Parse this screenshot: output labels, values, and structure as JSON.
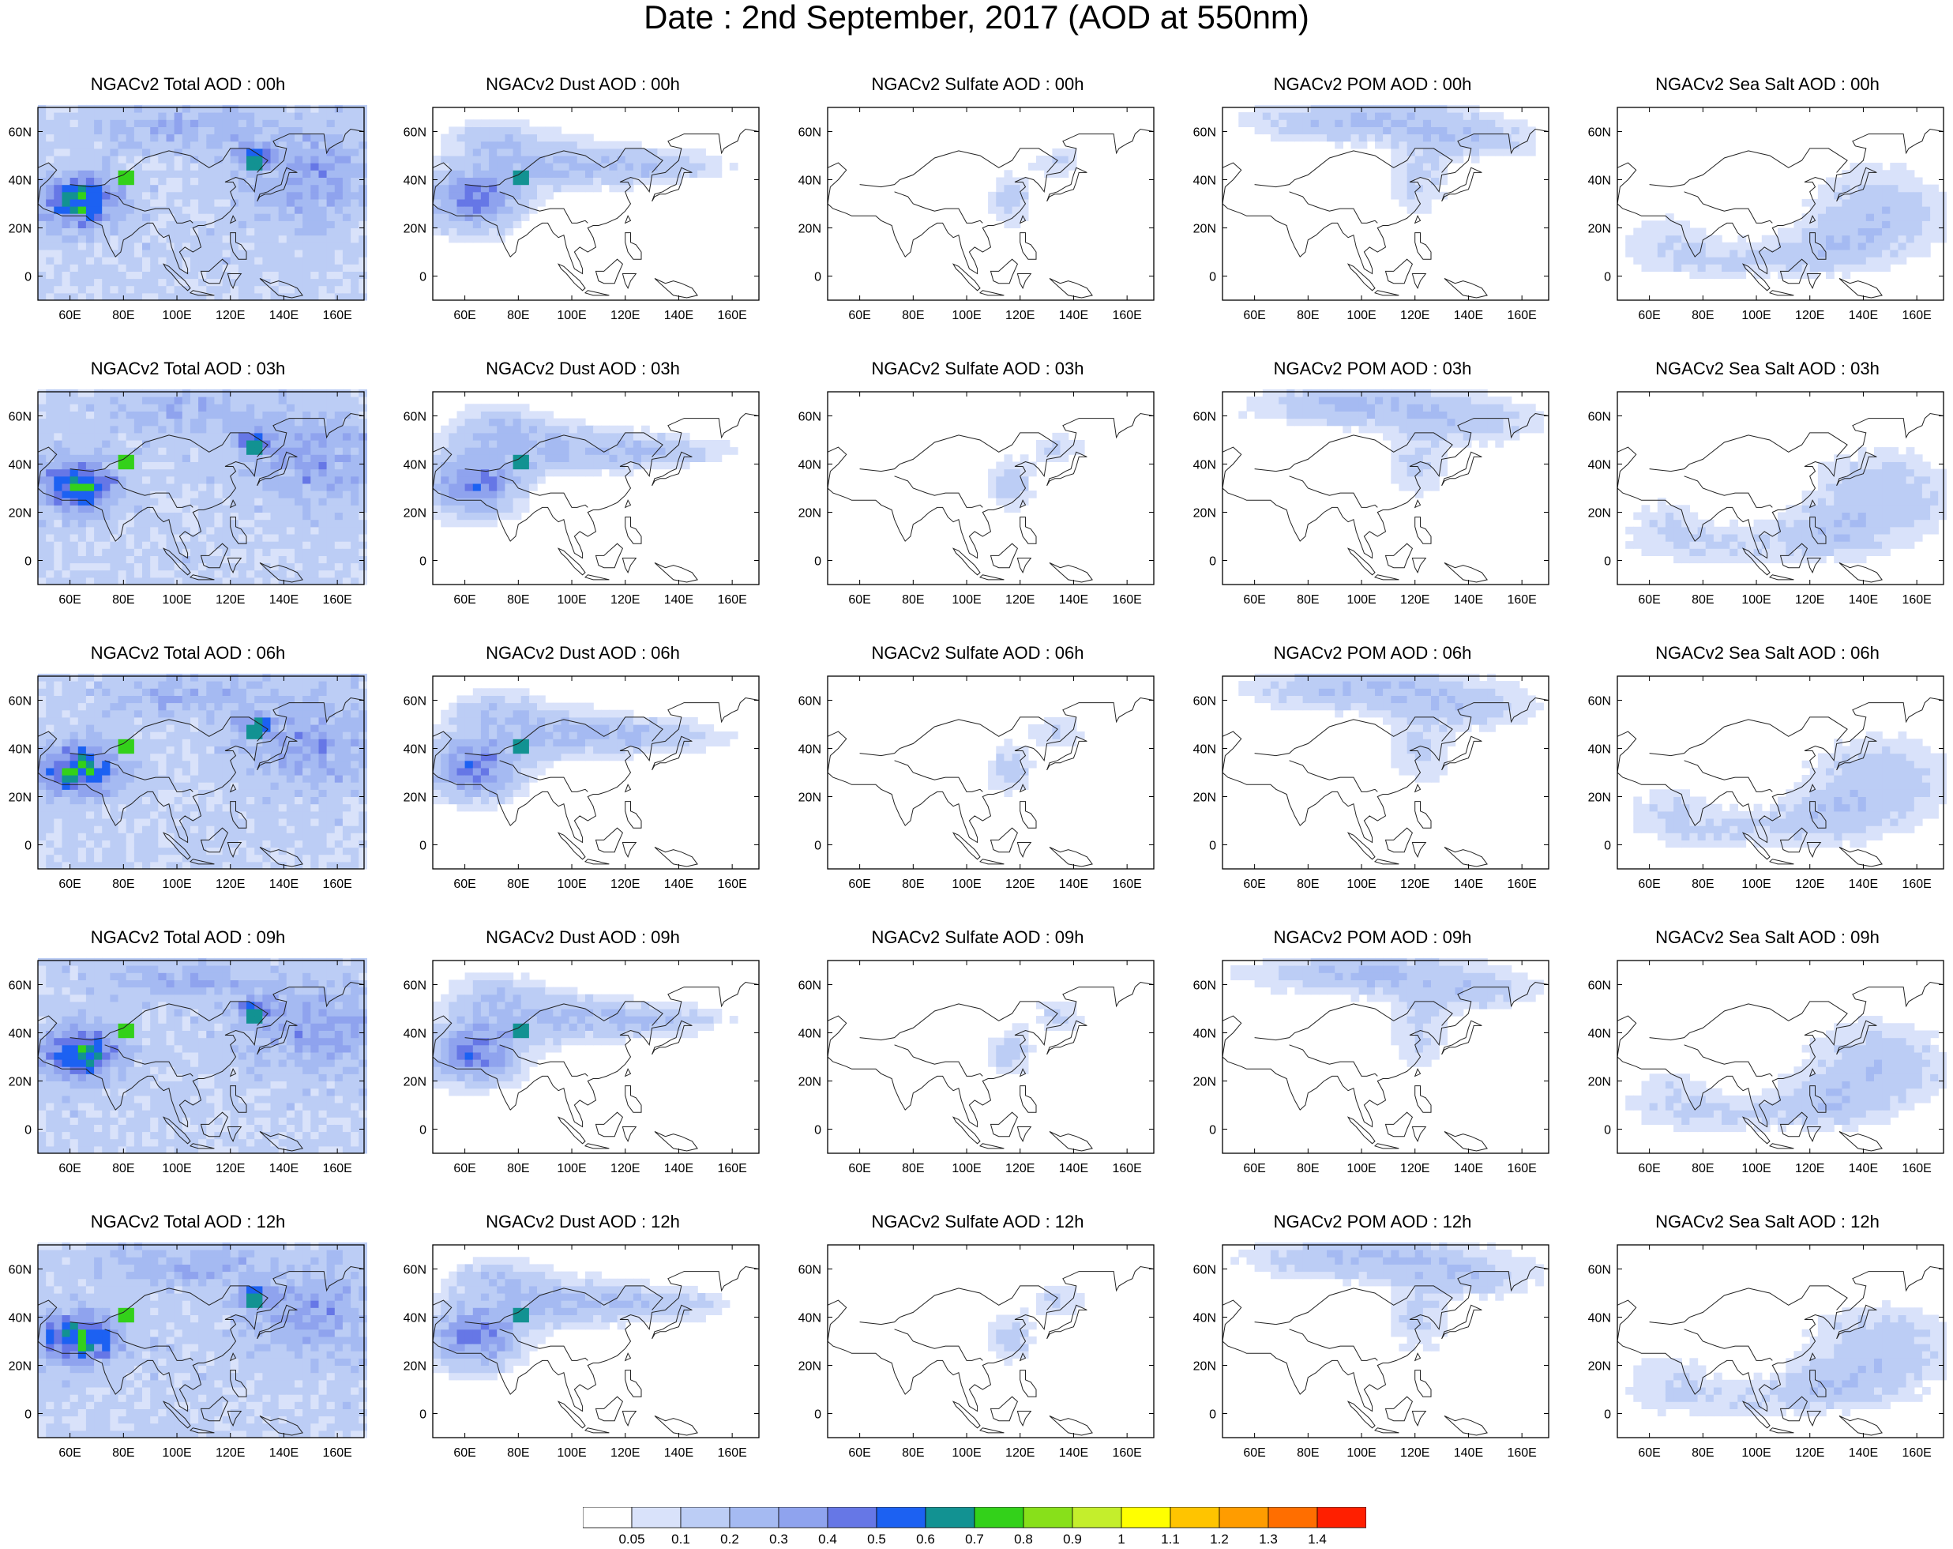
{
  "title": "Date : 2nd September, 2017 (AOD at 550nm)",
  "axes": {
    "x_ticks": [
      "60E",
      "80E",
      "100E",
      "120E",
      "140E",
      "160E"
    ],
    "y_ticks": [
      "60N",
      "40N",
      "20N",
      "0"
    ],
    "lon_range": [
      48,
      170
    ],
    "lat_range": [
      -10,
      70
    ]
  },
  "species": [
    {
      "key": "total",
      "label": "Total",
      "intensity": 1.0,
      "base": 0.12,
      "regions": [
        [
          62,
          30,
          14,
          10,
          0.55
        ],
        [
          128,
          48,
          6,
          4,
          0.4
        ],
        [
          150,
          40,
          25,
          18,
          0.2
        ],
        [
          100,
          60,
          30,
          8,
          0.15
        ]
      ],
      "hotspots": [
        [
          80,
          40,
          0.7
        ],
        [
          127,
          45,
          0.6
        ]
      ]
    },
    {
      "key": "dust",
      "label": "Dust",
      "intensity": 0.85,
      "base": 0.0,
      "regions": [
        [
          62,
          30,
          16,
          12,
          0.5
        ],
        [
          90,
          45,
          30,
          10,
          0.25
        ],
        [
          130,
          44,
          25,
          6,
          0.2
        ],
        [
          70,
          55,
          15,
          8,
          0.18
        ]
      ],
      "hotspots": [
        [
          80,
          40,
          0.75
        ]
      ]
    },
    {
      "key": "sulfate",
      "label": "Sulfate",
      "intensity": 0.5,
      "base": 0.0,
      "regions": [
        [
          115,
          30,
          8,
          10,
          0.3
        ],
        [
          133,
          45,
          10,
          7,
          0.22
        ]
      ],
      "hotspots": []
    },
    {
      "key": "pom",
      "label": "POM",
      "intensity": 0.6,
      "base": 0.0,
      "regions": [
        [
          100,
          63,
          40,
          8,
          0.35
        ],
        [
          140,
          55,
          25,
          8,
          0.22
        ],
        [
          120,
          38,
          12,
          15,
          0.18
        ]
      ],
      "hotspots": []
    },
    {
      "key": "seasalt",
      "label": "Sea Salt",
      "intensity": 0.55,
      "base": 0.0,
      "regions": [
        [
          145,
          25,
          25,
          18,
          0.3
        ],
        [
          85,
          5,
          30,
          8,
          0.2
        ],
        [
          125,
          10,
          20,
          10,
          0.25
        ],
        [
          65,
          15,
          15,
          10,
          0.15
        ]
      ],
      "hotspots": []
    }
  ],
  "panels": [
    [
      "NGACv2 Total AOD : 00h",
      "NGACv2 Dust AOD : 00h",
      "NGACv2 Sulfate AOD : 00h",
      "NGACv2 POM AOD : 00h",
      "NGACv2 Sea Salt AOD : 00h"
    ],
    [
      "NGACv2 Total AOD : 03h",
      "NGACv2 Dust AOD : 03h",
      "NGACv2 Sulfate AOD : 03h",
      "NGACv2 POM AOD : 03h",
      "NGACv2 Sea Salt AOD : 03h"
    ],
    [
      "NGACv2 Total AOD : 06h",
      "NGACv2 Dust AOD : 06h",
      "NGACv2 Sulfate AOD : 06h",
      "NGACv2 POM AOD : 06h",
      "NGACv2 Sea Salt AOD : 06h"
    ],
    [
      "NGACv2 Total AOD : 09h",
      "NGACv2 Dust AOD : 09h",
      "NGACv2 Sulfate AOD : 09h",
      "NGACv2 POM AOD : 09h",
      "NGACv2 Sea Salt  AOD : 09h"
    ],
    [
      "NGACv2 Total AOD  : 12h",
      "NGACv2 Dust AOD : 12h",
      "NGACv2 Sulfate AOD : 12h",
      "NGACv2 POM  AOD : 12h",
      "NGACv2 Sea Salt  AOD : 12h"
    ]
  ],
  "colorbar": {
    "labels": [
      "0.05",
      "0.1",
      "0.2",
      "0.3",
      "0.4",
      "0.5",
      "0.6",
      "0.7",
      "0.8",
      "0.9",
      "1",
      "1.1",
      "1.2",
      "1.3",
      "1.4"
    ],
    "colors": [
      "#ffffff",
      "#d9e2fa",
      "#bccdf5",
      "#a5baf2",
      "#8fa3ee",
      "#6677e6",
      "#1c61f2",
      "#129292",
      "#33d11a",
      "#88e01a",
      "#c4ee2c",
      "#ffff00",
      "#ffc400",
      "#ff9c00",
      "#ff6e00",
      "#ff1f00"
    ]
  }
}
